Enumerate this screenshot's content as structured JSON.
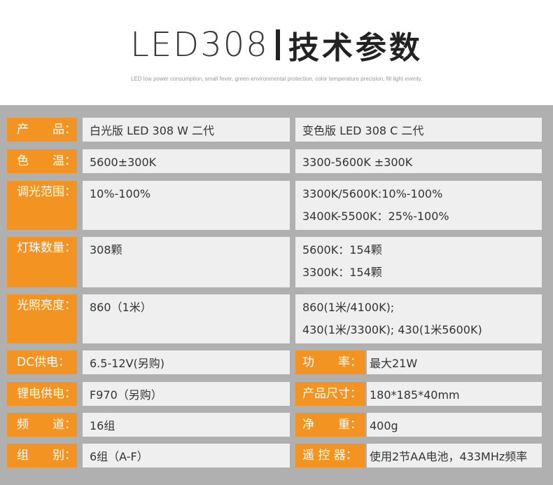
{
  "header": {
    "model": "LED308",
    "title": "技术参数",
    "subtitle": "LED low power consumption, small fever, green environmental protection, color temperature precision, fill light evenly,"
  },
  "rows": [
    {
      "label": "产　　品：",
      "left": [
        "白光版 LED 308 W 二代"
      ],
      "right": [
        "变色版 LED 308 C 二代"
      ]
    },
    {
      "label": "色　　温：",
      "left": [
        "5600±300K"
      ],
      "right": [
        "3300-5600K ±300K"
      ]
    },
    {
      "label": "调光范围：",
      "left": [
        "10%-100%"
      ],
      "right": [
        "3300K/5600K:10%-100%",
        "3400K-5500K：25%-100%"
      ]
    },
    {
      "label": "灯珠数量：",
      "left": [
        "308颗"
      ],
      "right": [
        "5600K：154颗",
        "3300K：154颗"
      ]
    },
    {
      "label": "光照亮度：",
      "left": [
        "860（1米）"
      ],
      "right": [
        "860(1米/4100K);",
        "430(1米/3300K); 430(1米5600K)"
      ]
    },
    {
      "label": "DC供电：",
      "left": [
        "6.5-12V(另购)"
      ],
      "label2": "功　　率：",
      "right": [
        "最大21W"
      ]
    },
    {
      "label": "锂电供电：",
      "left": [
        "F970（另购）"
      ],
      "label2": "产品尺寸：",
      "right": [
        "180*185*40mm"
      ]
    },
    {
      "label": "频　　道：",
      "left": [
        "16组"
      ],
      "label2": "净　　重：",
      "right": [
        "400g"
      ]
    },
    {
      "label": "组　　别：",
      "left": [
        "6组（A-F）"
      ],
      "label2": "遥 控 器：",
      "right": [
        "使用2节AA电池，433MHz频率"
      ]
    }
  ]
}
